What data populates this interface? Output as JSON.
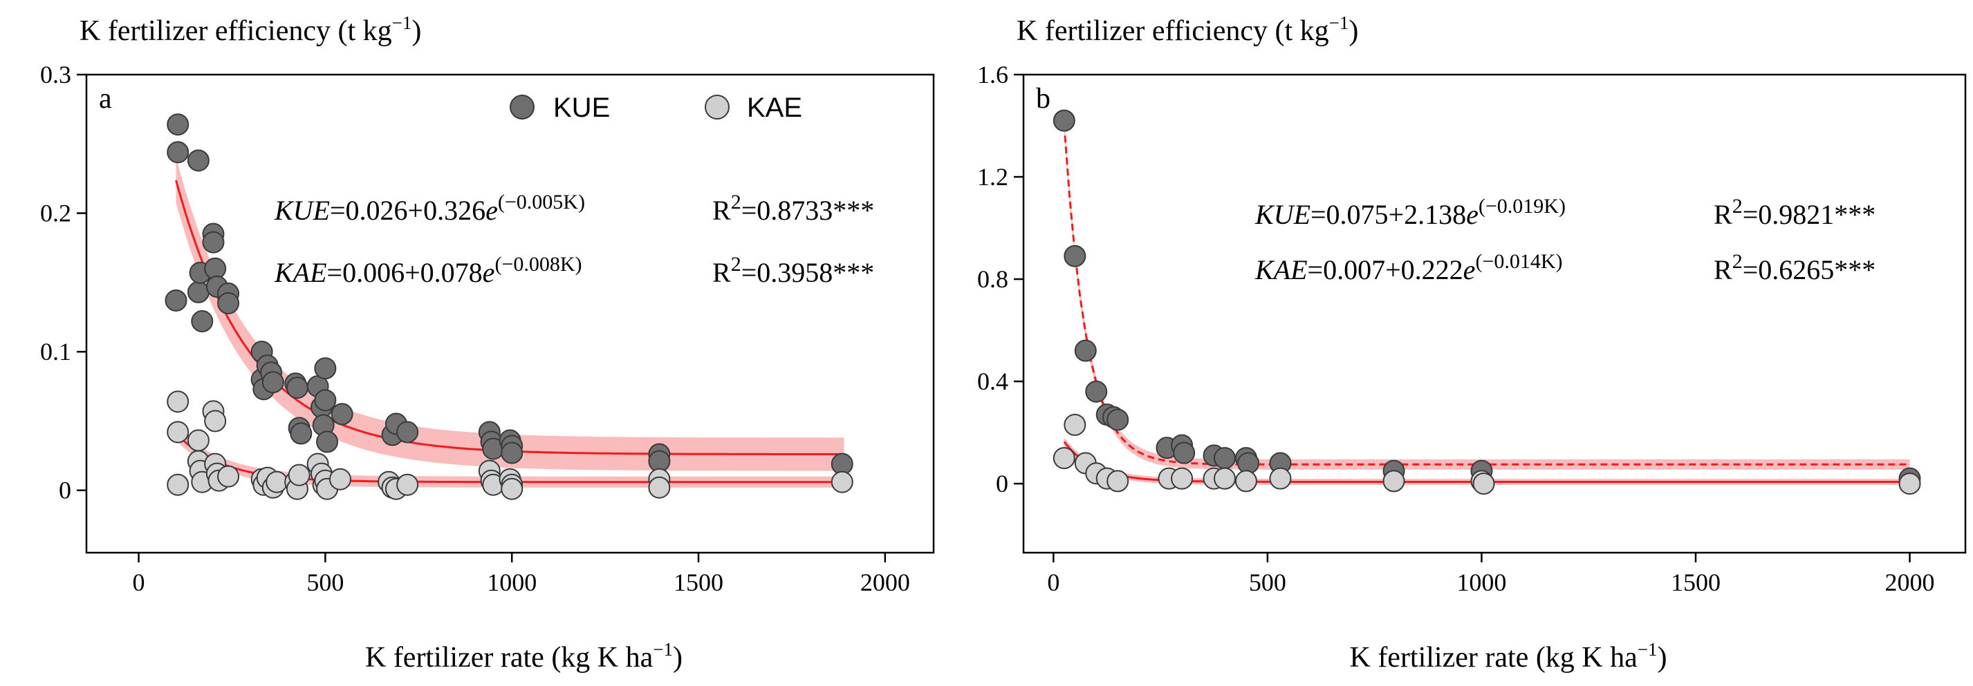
{
  "chart_data": [
    {
      "type": "scatter",
      "panel_label": "a",
      "ylabel_main": "K fertilizer efficiency (t kg",
      "ylabel_sup": "−1",
      "ylabel_close": ")",
      "xlabel_main": "K fertilizer rate (kg K ha",
      "xlabel_sup": "−1",
      "xlabel_close": ")",
      "xlim": [
        -140,
        2130
      ],
      "ylim": [
        -0.045,
        0.3
      ],
      "xticks": [
        0,
        500,
        1000,
        1500,
        2000
      ],
      "yticks": [
        0,
        0.1,
        0.2,
        0.3
      ],
      "ytick_labels": [
        "0",
        "0.1",
        "0.2",
        "0.3"
      ],
      "legend": [
        {
          "name": "KUE",
          "color": "#6e6e6e"
        },
        {
          "name": "KAE",
          "color": "#cfcfcf"
        }
      ],
      "legend_position": "top-right",
      "fit_color": "#ee1c1c",
      "band_color": "#f7a4a4",
      "equations": [
        {
          "var": "KUE",
          "text": "=0.026+0.326",
          "e": "e",
          "exp": "(−0.005K)",
          "r2_base": "R",
          "r2_sup": "2",
          "r2_val": "=0.8733***"
        },
        {
          "var": "KAE",
          "text": "=0.006+0.078",
          "e": "e",
          "exp": "(−0.008K)",
          "r2_base": "R",
          "r2_sup": "2",
          "r2_val": "=0.3958***"
        }
      ],
      "fits": [
        {
          "name": "KUE",
          "a": 0.026,
          "b": 0.326,
          "k": 0.005,
          "x_range": [
            100,
            1890
          ],
          "band": 0.012
        },
        {
          "name": "KAE",
          "a": 0.006,
          "b": 0.078,
          "k": 0.008,
          "x_range": [
            100,
            1890
          ],
          "band": 0.004
        }
      ],
      "series": [
        {
          "name": "KUE",
          "points": [
            [
              105,
              0.264
            ],
            [
              105,
              0.244
            ],
            [
              100,
              0.137
            ],
            [
              160,
              0.238
            ],
            [
              160,
              0.143
            ],
            [
              165,
              0.157
            ],
            [
              170,
              0.122
            ],
            [
              200,
              0.185
            ],
            [
              200,
              0.179
            ],
            [
              205,
              0.16
            ],
            [
              210,
              0.147
            ],
            [
              240,
              0.142
            ],
            [
              240,
              0.135
            ],
            [
              330,
              0.1
            ],
            [
              330,
              0.08
            ],
            [
              335,
              0.073
            ],
            [
              345,
              0.09
            ],
            [
              355,
              0.085
            ],
            [
              360,
              0.078
            ],
            [
              420,
              0.077
            ],
            [
              425,
              0.074
            ],
            [
              430,
              0.045
            ],
            [
              435,
              0.041
            ],
            [
              480,
              0.075
            ],
            [
              490,
              0.06
            ],
            [
              495,
              0.047
            ],
            [
              500,
              0.088
            ],
            [
              500,
              0.065
            ],
            [
              505,
              0.035
            ],
            [
              545,
              0.055
            ],
            [
              680,
              0.04
            ],
            [
              690,
              0.048
            ],
            [
              720,
              0.042
            ],
            [
              940,
              0.042
            ],
            [
              945,
              0.035
            ],
            [
              950,
              0.03
            ],
            [
              995,
              0.036
            ],
            [
              1000,
              0.032
            ],
            [
              1000,
              0.027
            ],
            [
              1395,
              0.026
            ],
            [
              1395,
              0.021
            ],
            [
              1885,
              0.019
            ]
          ]
        },
        {
          "name": "KAE",
          "points": [
            [
              105,
              0.064
            ],
            [
              105,
              0.042
            ],
            [
              105,
              0.004
            ],
            [
              160,
              0.036
            ],
            [
              160,
              0.021
            ],
            [
              165,
              0.014
            ],
            [
              170,
              0.006
            ],
            [
              200,
              0.057
            ],
            [
              205,
              0.05
            ],
            [
              205,
              0.019
            ],
            [
              210,
              0.012
            ],
            [
              215,
              0.007
            ],
            [
              240,
              0.01
            ],
            [
              330,
              0.008
            ],
            [
              335,
              0.004
            ],
            [
              345,
              0.009
            ],
            [
              360,
              0.002
            ],
            [
              370,
              0.006
            ],
            [
              420,
              0.006
            ],
            [
              425,
              0.001
            ],
            [
              430,
              0.011
            ],
            [
              480,
              0.019
            ],
            [
              490,
              0.012
            ],
            [
              495,
              0.004
            ],
            [
              500,
              0.007
            ],
            [
              505,
              0.001
            ],
            [
              540,
              0.008
            ],
            [
              670,
              0.006
            ],
            [
              680,
              0.002
            ],
            [
              690,
              0.001
            ],
            [
              720,
              0.004
            ],
            [
              940,
              0.014
            ],
            [
              945,
              0.007
            ],
            [
              950,
              0.004
            ],
            [
              995,
              0.008
            ],
            [
              1000,
              0.004
            ],
            [
              1000,
              0.001
            ],
            [
              1395,
              0.008
            ],
            [
              1395,
              0.002
            ],
            [
              1885,
              0.006
            ]
          ]
        }
      ]
    },
    {
      "type": "scatter",
      "panel_label": "b",
      "ylabel_main": "K fertilizer efficiency (t kg",
      "ylabel_sup": "−1",
      "ylabel_close": ")",
      "xlabel_main": "K fertilizer rate (kg K ha",
      "xlabel_sup": "−1",
      "xlabel_close": ")",
      "xlim": [
        -70,
        2130
      ],
      "ylim": [
        -0.27,
        1.6
      ],
      "xticks": [
        0,
        500,
        1000,
        1500,
        2000
      ],
      "yticks": [
        0,
        0.4,
        0.8,
        1.2,
        1.6
      ],
      "ytick_labels": [
        "0",
        "0.4",
        "0.8",
        "1.2",
        "1.6"
      ],
      "fit_color": "#ee1c1c",
      "band_color": "#f7a4a4",
      "equations": [
        {
          "var": "KUE",
          "text": "=0.075+2.138",
          "e": "e",
          "exp": "(−0.019K)",
          "r2_base": "R",
          "r2_sup": "2",
          "r2_val": "=0.9821***"
        },
        {
          "var": "KAE",
          "text": "=0.007+0.222",
          "e": "e",
          "exp": "(−0.014K)",
          "r2_base": "R",
          "r2_sup": "2",
          "r2_val": "=0.6265***"
        }
      ],
      "fits": [
        {
          "name": "KUE",
          "a": 0.075,
          "b": 2.138,
          "k": 0.019,
          "x_range": [
            25,
            2000
          ],
          "band": 0.02,
          "dashed": true
        },
        {
          "name": "KAE",
          "a": 0.007,
          "b": 0.222,
          "k": 0.014,
          "x_range": [
            25,
            2000
          ],
          "band": 0.012
        }
      ],
      "series": [
        {
          "name": "KUE",
          "points": [
            [
              25,
              1.42
            ],
            [
              50,
              0.89
            ],
            [
              75,
              0.52
            ],
            [
              100,
              0.36
            ],
            [
              125,
              0.27
            ],
            [
              140,
              0.26
            ],
            [
              150,
              0.25
            ],
            [
              265,
              0.14
            ],
            [
              300,
              0.15
            ],
            [
              305,
              0.12
            ],
            [
              375,
              0.11
            ],
            [
              400,
              0.1
            ],
            [
              450,
              0.1
            ],
            [
              455,
              0.08
            ],
            [
              530,
              0.08
            ],
            [
              795,
              0.05
            ],
            [
              1000,
              0.05
            ],
            [
              2000,
              0.02
            ]
          ]
        },
        {
          "name": "KAE",
          "points": [
            [
              25,
              0.1
            ],
            [
              50,
              0.23
            ],
            [
              75,
              0.08
            ],
            [
              100,
              0.04
            ],
            [
              125,
              0.02
            ],
            [
              150,
              0.01
            ],
            [
              270,
              0.02
            ],
            [
              300,
              0.02
            ],
            [
              375,
              0.02
            ],
            [
              400,
              0.02
            ],
            [
              450,
              0.01
            ],
            [
              530,
              0.02
            ],
            [
              795,
              0.01
            ],
            [
              1000,
              0.01
            ],
            [
              1005,
              0.0
            ],
            [
              2000,
              0.0
            ]
          ]
        }
      ]
    }
  ]
}
